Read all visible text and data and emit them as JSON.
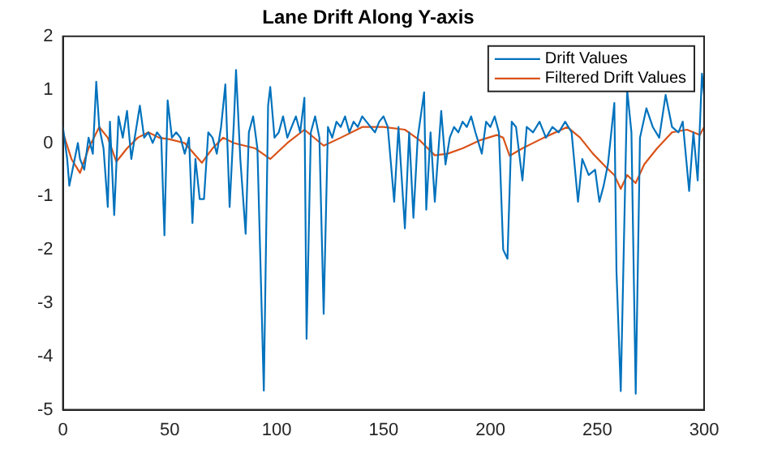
{
  "chart_data": {
    "type": "line",
    "title": "Lane Drift Along Y-axis",
    "xlim": [
      0,
      300
    ],
    "xticks": [
      0,
      50,
      100,
      150,
      200,
      250,
      300
    ],
    "ylim": [
      -5,
      2
    ],
    "yticks": [
      -5,
      -4,
      -3,
      -2,
      -1,
      0,
      1,
      2
    ],
    "grid": false,
    "legend": "top right",
    "marker": "none",
    "line_style": "solid",
    "series": [
      {
        "name": "Drift Values",
        "color": "#0072bd",
        "x": [
          0,
          2,
          3,
          5,
          7,
          8,
          10,
          12,
          14,
          15.6,
          17,
          19,
          21,
          22,
          24,
          26,
          28,
          30,
          32,
          34,
          36,
          38,
          40,
          42,
          44,
          46,
          47.5,
          49,
          51,
          53,
          55,
          57,
          59,
          60.6,
          62,
          64,
          66,
          68,
          70,
          72,
          74,
          76,
          78,
          80,
          81,
          83,
          85.5,
          87,
          89,
          91,
          94,
          96,
          97,
          99,
          101,
          103,
          105,
          107,
          109,
          111,
          113,
          114,
          116,
          118,
          120,
          122,
          124,
          126,
          128,
          130,
          132,
          134,
          136,
          138,
          140,
          142,
          144,
          146,
          148,
          150,
          152,
          155,
          157,
          160,
          162,
          164,
          166,
          169,
          170,
          172,
          174,
          177,
          179,
          181,
          183,
          185,
          187,
          189,
          191,
          193,
          196,
          198,
          200,
          202,
          204,
          206,
          208,
          210,
          212,
          215,
          217,
          220,
          223,
          226,
          229,
          232,
          235,
          238,
          241,
          243,
          246,
          249,
          251,
          253,
          255,
          258,
          259,
          261,
          264,
          266,
          268,
          270,
          273,
          276,
          279,
          282,
          285,
          288,
          290,
          293,
          295,
          297,
          299,
          300
        ],
        "values": [
          0.3,
          -0.3,
          -0.8,
          -0.4,
          0,
          -0.3,
          -0.5,
          0.1,
          -0.2,
          1.15,
          0.3,
          -0.1,
          -1.2,
          0.4,
          -1.35,
          0.5,
          0.1,
          0.6,
          -0.3,
          0.2,
          0.7,
          0.1,
          0.2,
          0,
          0.2,
          0.1,
          -1.73,
          0.8,
          0.1,
          0.2,
          0.1,
          -0.2,
          0.1,
          -1.5,
          -0.3,
          -1.05,
          -1.05,
          0.2,
          0.1,
          -0.2,
          0.3,
          1.1,
          -1.2,
          0.4,
          1.37,
          -0.3,
          -1.7,
          0.2,
          0.5,
          -0.1,
          -4.64,
          0.7,
          1.05,
          0.1,
          0.2,
          0.5,
          0.1,
          0.3,
          0.5,
          0.2,
          0.85,
          -3.67,
          0.2,
          0.5,
          0.1,
          -3.2,
          0.3,
          0.1,
          0.4,
          0.3,
          0.5,
          0.2,
          0.4,
          0.3,
          0.5,
          0.4,
          0.3,
          0.2,
          0.4,
          0.5,
          0.3,
          -1.1,
          0.3,
          -1.6,
          0.2,
          -1.4,
          0.1,
          0.95,
          -1.25,
          0.2,
          -1.1,
          0.6,
          -0.4,
          0.1,
          0.3,
          0.2,
          0.4,
          0.3,
          0.5,
          0.2,
          -0.2,
          0.4,
          0.3,
          0.5,
          0.2,
          -2,
          -2.17,
          0.4,
          0.3,
          -0.7,
          0.3,
          0.2,
          0.4,
          0.1,
          0.3,
          0.2,
          0.4,
          0.2,
          -1.1,
          -0.3,
          -0.6,
          -0.5,
          -1.1,
          -0.8,
          -0.4,
          0.75,
          -2.4,
          -4.65,
          1,
          0.2,
          -4.7,
          0.1,
          0.65,
          0.3,
          0.1,
          0.9,
          0.3,
          0.2,
          0.4,
          -0.9,
          0.2,
          -0.7,
          1.3,
          0.9
        ]
      },
      {
        "name": "Filtered Drift Values",
        "color": "#d95319",
        "x": [
          0,
          4,
          8,
          12,
          17,
          21,
          25,
          30,
          35,
          40,
          45,
          50,
          57,
          65,
          70,
          75,
          80,
          85,
          90,
          97,
          105,
          113,
          122,
          130,
          140,
          150,
          160,
          167,
          174,
          180,
          187,
          195,
          203,
          206,
          209,
          215,
          225,
          236,
          242,
          248,
          254,
          258,
          261,
          264,
          268,
          272,
          278,
          285,
          292,
          298,
          300
        ],
        "values": [
          0.2,
          -0.3,
          -0.56,
          -0.1,
          0.3,
          0.1,
          -0.35,
          -0.1,
          0.1,
          0.2,
          0.1,
          0.07,
          0,
          -0.37,
          -0.1,
          0.1,
          0,
          -0.05,
          -0.1,
          -0.3,
          0,
          0.25,
          -0.05,
          0.1,
          0.3,
          0.3,
          0.25,
          0.05,
          -0.23,
          -0.2,
          -0.1,
          0.05,
          0.15,
          0.1,
          -0.24,
          -0.1,
          0.1,
          0.3,
          0.1,
          -0.2,
          -0.45,
          -0.6,
          -0.86,
          -0.6,
          -0.75,
          -0.4,
          -0.1,
          0.2,
          0.25,
          0.15,
          0.3
        ]
      }
    ]
  }
}
